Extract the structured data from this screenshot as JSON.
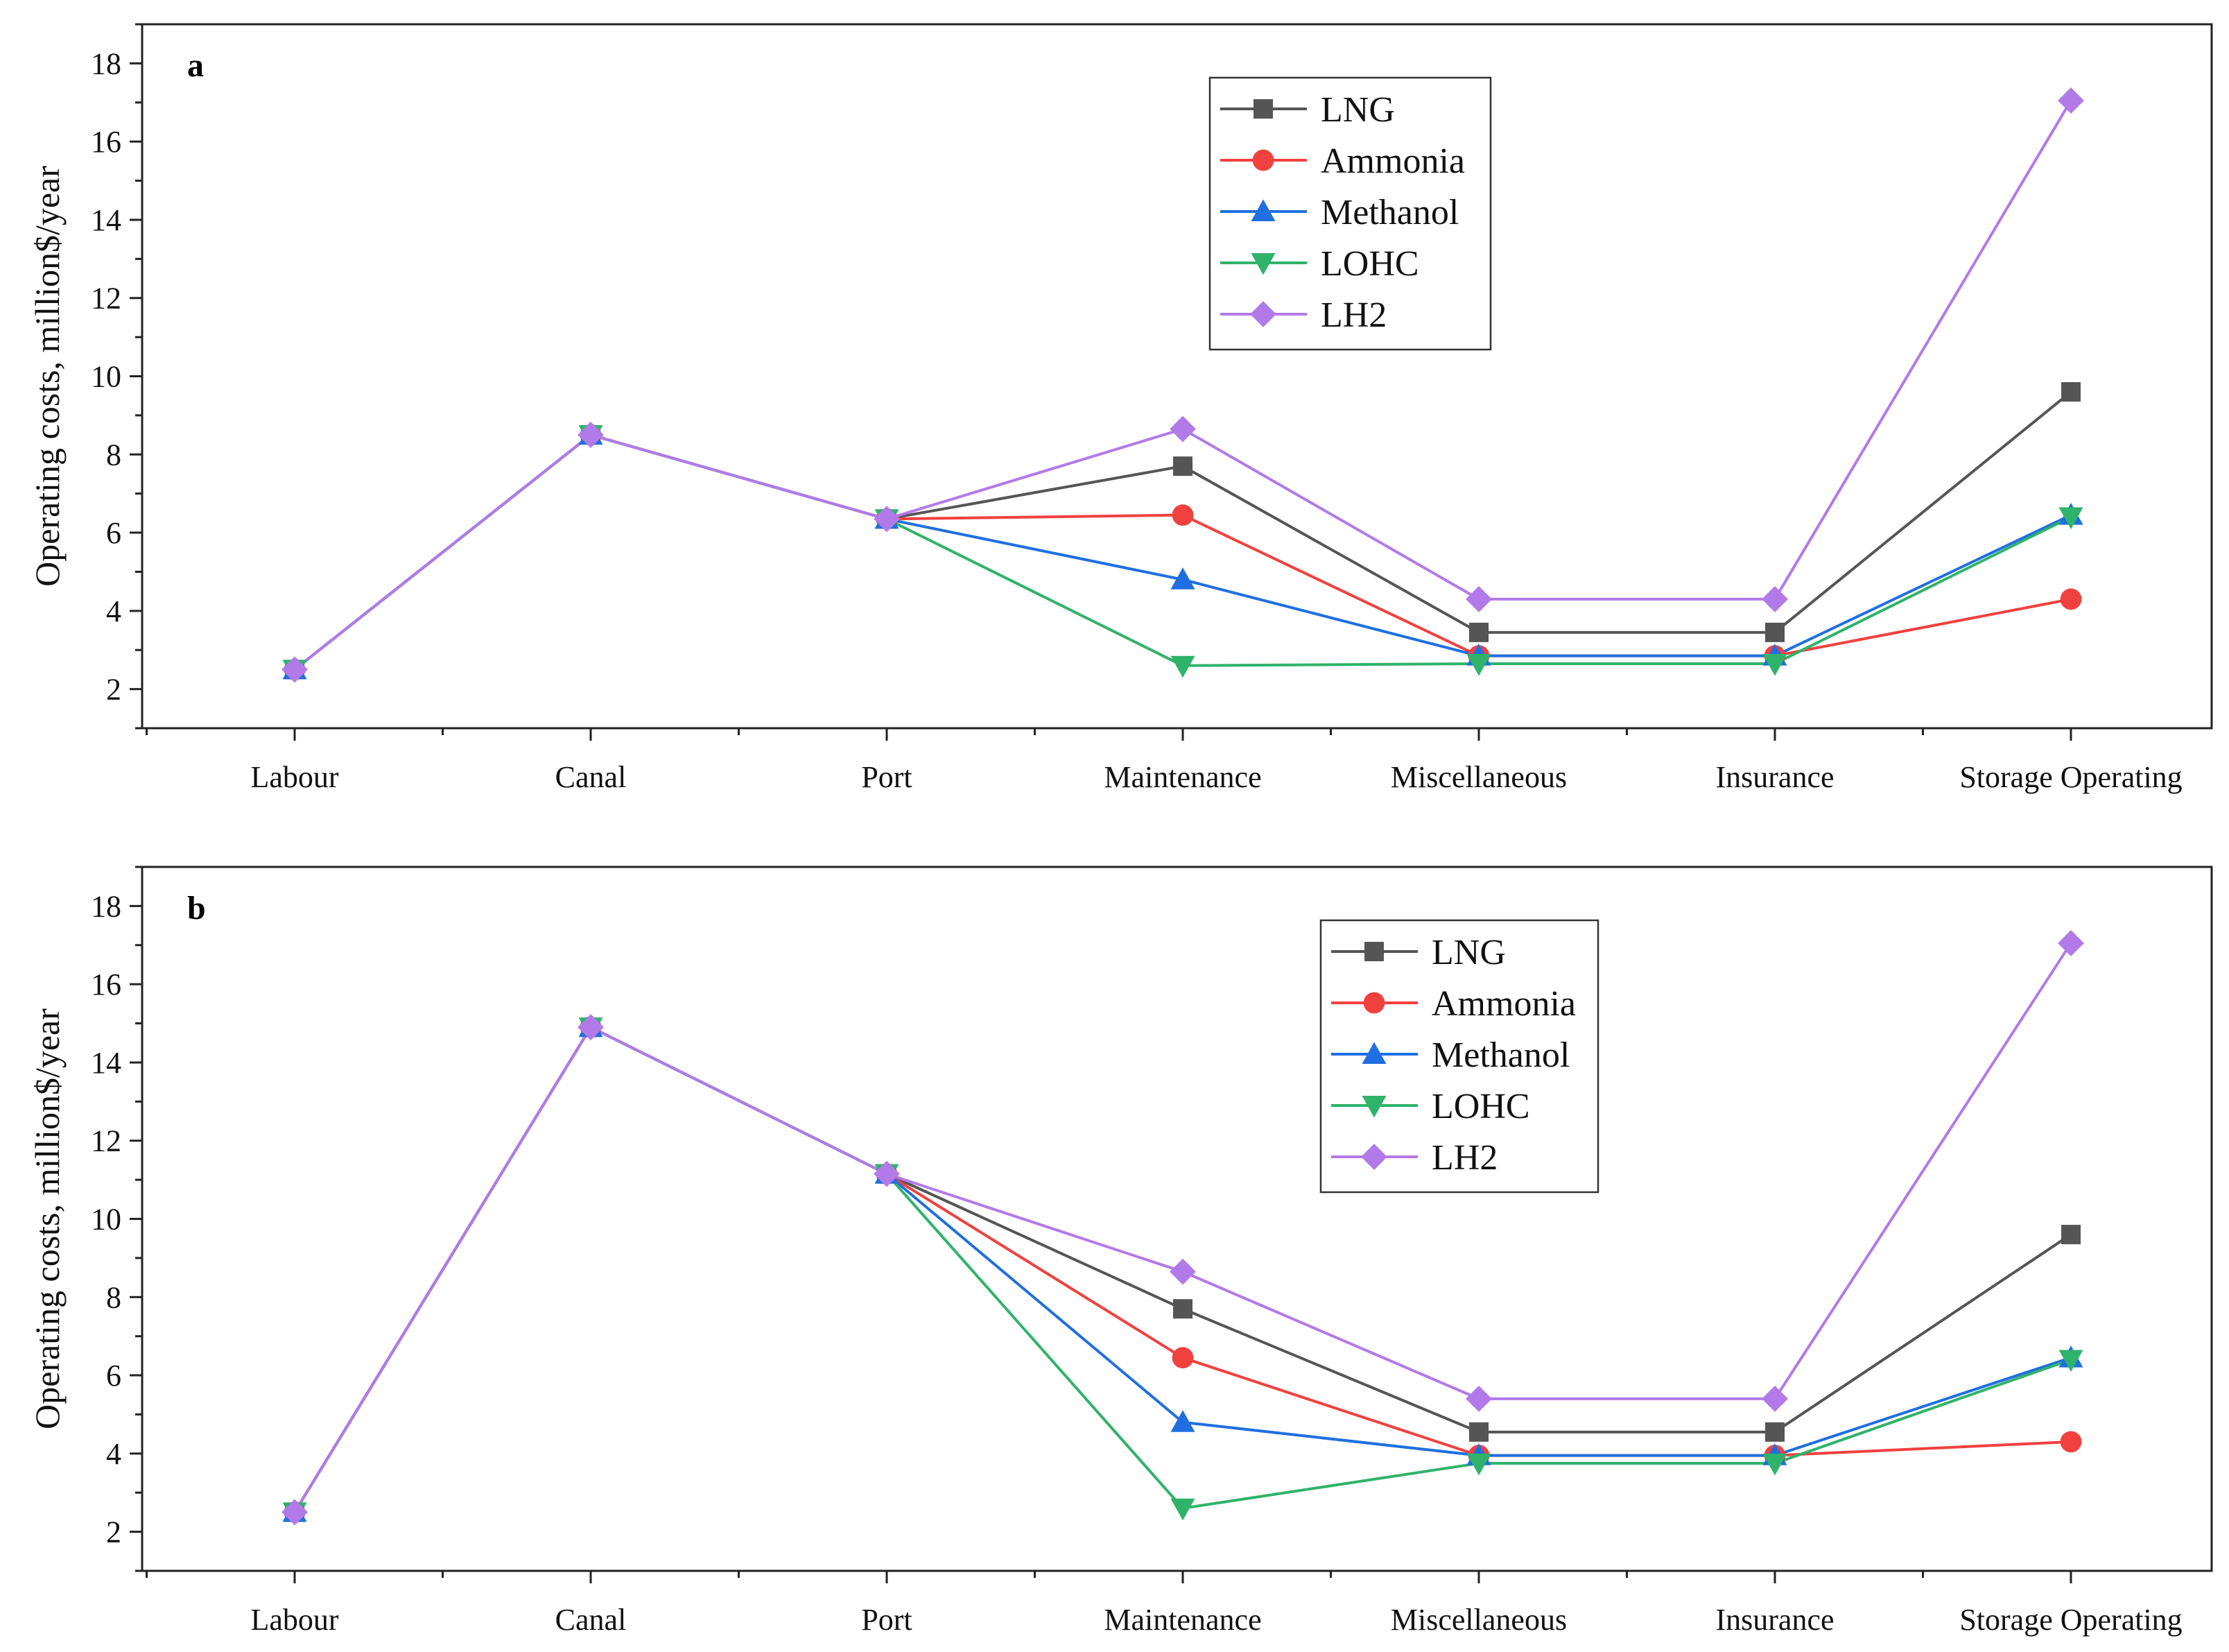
{
  "chart_data": [
    {
      "type": "line",
      "panel_label": "a",
      "title": "",
      "xlabel": "",
      "ylabel": "Operating costs, million$/year",
      "ylim": [
        1,
        19
      ],
      "yticks": [
        2,
        4,
        6,
        8,
        10,
        12,
        14,
        16,
        18
      ],
      "grid": false,
      "legend_position": "top-center",
      "categories": [
        "Labour",
        "Canal",
        "Port",
        "Maintenance",
        "Miscellaneous",
        "Insurance",
        "Storage Operating"
      ],
      "series": [
        {
          "name": "LNG",
          "marker": "square",
          "color": "#555555",
          "values": [
            2.5,
            8.5,
            6.35,
            7.7,
            3.45,
            3.45,
            9.6
          ]
        },
        {
          "name": "Ammonia",
          "marker": "circle",
          "color": "#f0413f",
          "values": [
            2.5,
            8.5,
            6.35,
            6.45,
            2.85,
            2.85,
            4.3
          ]
        },
        {
          "name": "Methanol",
          "marker": "triangle-up",
          "color": "#1f6fe0",
          "values": [
            2.5,
            8.5,
            6.35,
            4.8,
            2.85,
            2.85,
            6.45
          ]
        },
        {
          "name": "LOHC",
          "marker": "triangle-down",
          "color": "#2fb36a",
          "values": [
            2.5,
            8.5,
            6.35,
            2.6,
            2.65,
            2.65,
            6.4
          ]
        },
        {
          "name": "LH2",
          "marker": "diamond",
          "color": "#b27ae8",
          "values": [
            2.5,
            8.5,
            6.35,
            8.65,
            4.3,
            4.3,
            17.05
          ]
        }
      ]
    },
    {
      "type": "line",
      "panel_label": "b",
      "title": "",
      "xlabel": "",
      "ylabel": "Operating costs, million$/year",
      "ylim": [
        1,
        19
      ],
      "yticks": [
        2,
        4,
        6,
        8,
        10,
        12,
        14,
        16,
        18
      ],
      "grid": false,
      "legend_position": "top-center",
      "categories": [
        "Labour",
        "Canal",
        "Port",
        "Maintenance",
        "Miscellaneous",
        "Insurance",
        "Storage Operating"
      ],
      "series": [
        {
          "name": "LNG",
          "marker": "square",
          "color": "#555555",
          "values": [
            2.5,
            14.9,
            11.15,
            7.7,
            4.55,
            4.55,
            9.6
          ]
        },
        {
          "name": "Ammonia",
          "marker": "circle",
          "color": "#f0413f",
          "values": [
            2.5,
            14.9,
            11.15,
            6.45,
            3.95,
            3.95,
            4.3
          ]
        },
        {
          "name": "Methanol",
          "marker": "triangle-up",
          "color": "#1f6fe0",
          "values": [
            2.5,
            14.9,
            11.15,
            4.8,
            3.95,
            3.95,
            6.45
          ]
        },
        {
          "name": "LOHC",
          "marker": "triangle-down",
          "color": "#2fb36a",
          "values": [
            2.5,
            14.9,
            11.15,
            2.6,
            3.75,
            3.75,
            6.4
          ]
        },
        {
          "name": "LH2",
          "marker": "diamond",
          "color": "#b27ae8",
          "values": [
            2.5,
            14.9,
            11.15,
            8.65,
            5.4,
            5.4,
            17.05
          ]
        }
      ]
    }
  ]
}
